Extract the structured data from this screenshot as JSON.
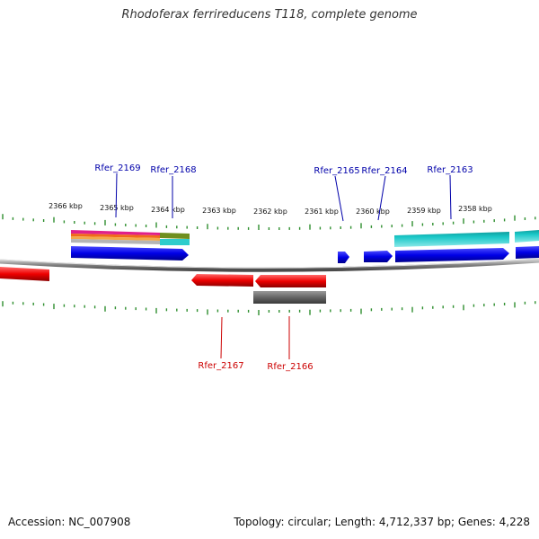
{
  "title": "Rhodoferax ferrireducens T118, complete genome",
  "footer": {
    "accession": "Accession: NC_007908",
    "summary": "Topology: circular; Length: 4,712,337 bp; Genes: 4,228"
  },
  "scale_ticks": [
    "2366 kbp",
    "2365 kbp",
    "2364 kbp",
    "2363 kbp",
    "2362 kbp",
    "2361 kbp",
    "2360 kbp",
    "2359 kbp",
    "2358 kbp"
  ],
  "gene_labels": {
    "top": [
      "Rfer_2169",
      "Rfer_2168",
      "Rfer_2165",
      "Rfer_2164",
      "Rfer_2163"
    ],
    "bottom": [
      "Rfer_2167",
      "Rfer_2166"
    ]
  },
  "colors": {
    "forward_gene": "#0000ee",
    "reverse_gene": "#ee0000",
    "top_label": "#0000aa",
    "bottom_label": "#cc0000",
    "tick": "#2f8f2f",
    "cyan_feature": "#22c4c4",
    "grey_feature": "#666666"
  }
}
